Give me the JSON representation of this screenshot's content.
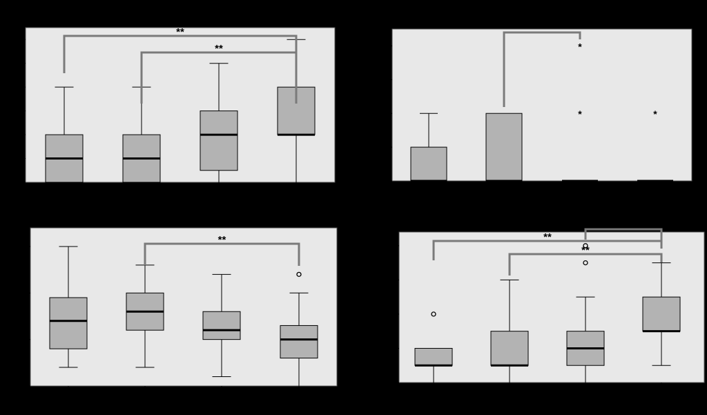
{
  "chart_data": [
    {
      "type": "boxplot",
      "ylim": [
        0,
        6.5
      ],
      "yticks": [
        "0.00",
        "1.00",
        "2.00",
        "3.00",
        "4.00",
        "5.00",
        "6.00"
      ],
      "grid": false,
      "boxes": [
        {
          "min": 0,
          "q1": 0,
          "median": 1,
          "q3": 2,
          "max": 4,
          "outliers": []
        },
        {
          "min": 0,
          "q1": 0,
          "median": 1,
          "q3": 2,
          "max": 4,
          "outliers": []
        },
        {
          "min": 0,
          "q1": 0.5,
          "median": 2,
          "q3": 3,
          "max": 5,
          "outliers": []
        },
        {
          "min": 0,
          "q1": 2,
          "median": 2,
          "q3": 4,
          "max": 6,
          "outliers": []
        }
      ],
      "significance": [
        {
          "from": 0,
          "to": 3,
          "label": "**"
        },
        {
          "from": 1,
          "to": 3,
          "label": "**"
        }
      ]
    },
    {
      "type": "boxplot",
      "ylim": [
        0,
        2.25
      ],
      "yticks": [
        "0.00",
        "0.50",
        "1.00",
        "1.50",
        "2.00"
      ],
      "grid": false,
      "boxes": [
        {
          "min": 0,
          "q1": 0,
          "median": 0,
          "q3": 0.5,
          "max": 1,
          "outliers": []
        },
        {
          "min": 0,
          "q1": 0,
          "median": 0,
          "q3": 1,
          "max": 1,
          "outliers": []
        },
        {
          "min": 0,
          "q1": 0,
          "median": 0,
          "q3": 0,
          "max": 0,
          "outliers": [],
          "extremes": [
            1,
            2
          ]
        },
        {
          "min": 0,
          "q1": 0,
          "median": 0,
          "q3": 0,
          "max": 0,
          "outliers": [],
          "extremes": [
            1
          ]
        }
      ],
      "significance": [
        {
          "from": 1,
          "to": 2,
          "label": "*"
        }
      ]
    },
    {
      "type": "boxplot",
      "ylim": [
        0,
        17
      ],
      "yticks": [
        "0.00",
        "5.00",
        "10.00",
        "15.00"
      ],
      "grid": false,
      "boxes": [
        {
          "min": 2,
          "q1": 4,
          "median": 7,
          "q3": 9.5,
          "max": 15,
          "outliers": []
        },
        {
          "min": 2,
          "q1": 6,
          "median": 8,
          "q3": 10,
          "max": 13,
          "outliers": []
        },
        {
          "min": 1,
          "q1": 5,
          "median": 6,
          "q3": 8,
          "max": 12,
          "outliers": []
        },
        {
          "min": 0,
          "q1": 3,
          "median": 5,
          "q3": 6.5,
          "max": 10,
          "outliers": [
            12
          ]
        }
      ],
      "significance": [
        {
          "from": 1,
          "to": 3,
          "label": "**"
        }
      ]
    },
    {
      "type": "boxplot",
      "ylim": [
        0,
        8.8
      ],
      "yticks": [
        "0.00",
        "2.00",
        "4.00",
        "6.00",
        "8.00"
      ],
      "grid": false,
      "boxes": [
        {
          "min": 0,
          "q1": 1,
          "median": 1,
          "q3": 2,
          "max": 2,
          "outliers": [
            4
          ]
        },
        {
          "min": 0,
          "q1": 1,
          "median": 1,
          "q3": 3,
          "max": 6,
          "outliers": []
        },
        {
          "min": 0,
          "q1": 1,
          "median": 2,
          "q3": 3,
          "max": 5,
          "outliers": [
            7,
            8
          ]
        },
        {
          "min": 1,
          "q1": 3,
          "median": 3,
          "q3": 5,
          "max": 7,
          "outliers": []
        }
      ],
      "significance": [
        {
          "from": 0,
          "to": 3,
          "label": "**"
        },
        {
          "from": 1,
          "to": 3,
          "label": "**"
        },
        {
          "from": 2,
          "to": 3,
          "label": "*"
        }
      ]
    }
  ],
  "colors": {
    "background": "#000000",
    "plot_area": "#e8e8e8",
    "box_fill": "#b3b3b3",
    "bracket": "#7a7a7a"
  }
}
